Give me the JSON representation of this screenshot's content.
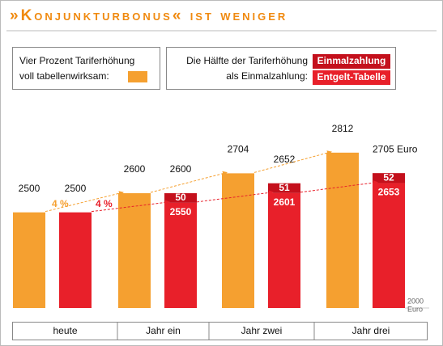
{
  "chart_data": {
    "type": "bar",
    "title": "»Konjunkturbonus« ist weniger",
    "legend_text": [
      [
        "Vier Prozent Tariferhöhung",
        "voll tabellenwirksam:"
      ],
      [
        "Die Hälfte der Tariferhöhung",
        "als Einmalzahlung:"
      ]
    ],
    "categories": [
      "heute",
      "Jahr ein",
      "Jahr zwei",
      "Jahr drei"
    ],
    "series": [
      {
        "color": "#f5a030",
        "values": [
          2500,
          2600,
          2704,
          2812
        ]
      },
      {
        "name": "Entgelt-Tabelle",
        "color": "#e8202a",
        "values": [
          2500,
          2550,
          2601,
          2653
        ]
      },
      {
        "name": "Einmalzahlung",
        "color": "#c4101c",
        "values": [
          null,
          50,
          51,
          52
        ],
        "stacked_on": 1
      }
    ],
    "total_labels": [
      "2500",
      "2600",
      "2652",
      "2705 Euro"
    ],
    "annotations": [
      {
        "text": "4 %",
        "color": "#f5a030"
      },
      {
        "text": "4 %",
        "color": "#e8202a"
      }
    ],
    "ylim": [
      2000,
      2900
    ],
    "yticks": [
      2000
    ],
    "y_unit": "Euro"
  }
}
